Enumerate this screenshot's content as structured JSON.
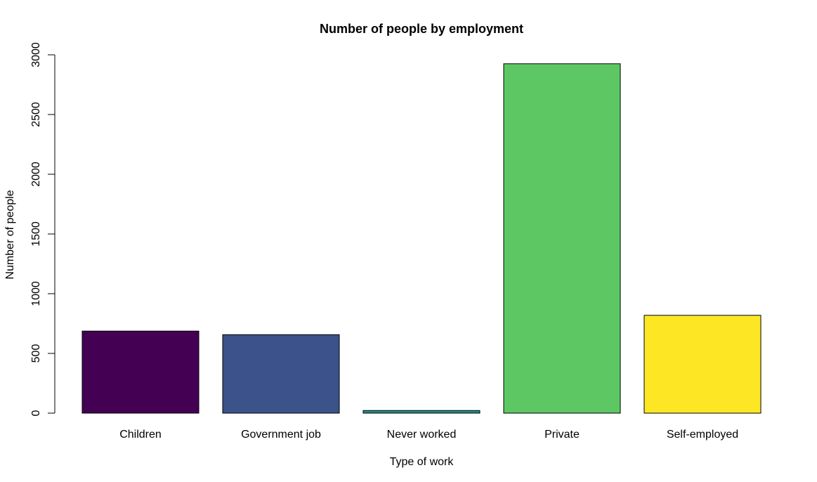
{
  "chart_data": {
    "type": "bar",
    "title": "Number of people by employment",
    "xlabel": "Type of work",
    "ylabel": "Number of people",
    "categories": [
      "Children",
      "Government job",
      "Never worked",
      "Private",
      "Self-employed"
    ],
    "values": [
      687,
      657,
      22,
      2925,
      819
    ],
    "colors": [
      "#440154",
      "#3B528B",
      "#21908C",
      "#5DC863",
      "#FDE725"
    ],
    "ylim": [
      0,
      3000
    ],
    "yticks": [
      "0",
      "500",
      "1000",
      "1500",
      "2000",
      "2500",
      "3000"
    ],
    "grid": false,
    "legend": "none"
  }
}
